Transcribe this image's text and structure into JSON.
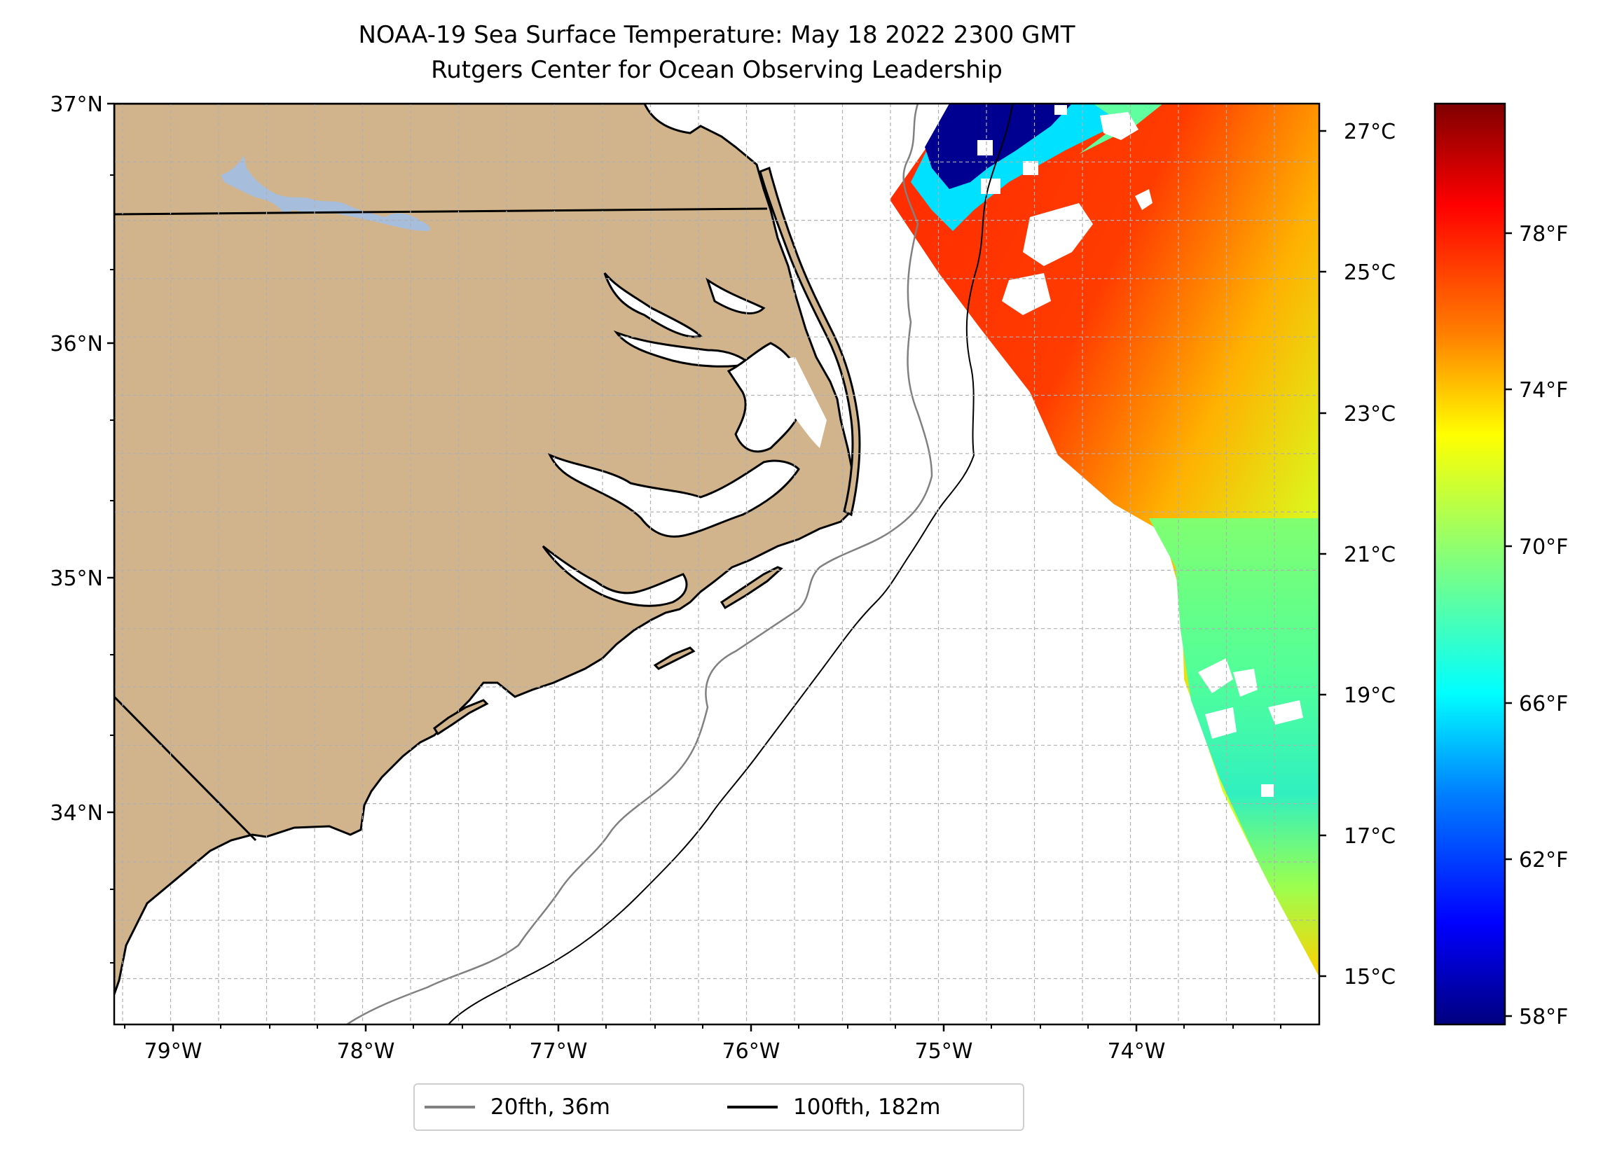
{
  "title": {
    "line1": "NOAA-19 Sea Surface Temperature: May 18 2022 2300 GMT",
    "line2": "Rutgers Center for Ocean Observing Leadership"
  },
  "map": {
    "lat_labels": [
      "37°N",
      "36°N",
      "35°N",
      "34°N"
    ],
    "lon_labels": [
      "79°W",
      "78°W",
      "77°W",
      "76°W",
      "75°W",
      "74°W"
    ],
    "land_color": "#d2b48c",
    "lake_color": "#a6bddb",
    "gridline_color": "#b0b0b0"
  },
  "colorbar": {
    "celsius_labels": [
      "27°C",
      "25°C",
      "23°C",
      "21°C",
      "19°C",
      "17°C",
      "15°C"
    ],
    "fahrenheit_labels": [
      "78°F",
      "74°F",
      "70°F",
      "66°F",
      "62°F",
      "58°F"
    ],
    "colormap": "jet",
    "colors": [
      "#00007f",
      "#0000ff",
      "#007fff",
      "#00ffff",
      "#7fff7f",
      "#ffff00",
      "#ff7f00",
      "#ff0000",
      "#7f0000"
    ]
  },
  "legend": {
    "items": [
      {
        "label": "20fth, 36m",
        "color": "#808080"
      },
      {
        "label": "100fth, 182m",
        "color": "#000000"
      }
    ]
  }
}
